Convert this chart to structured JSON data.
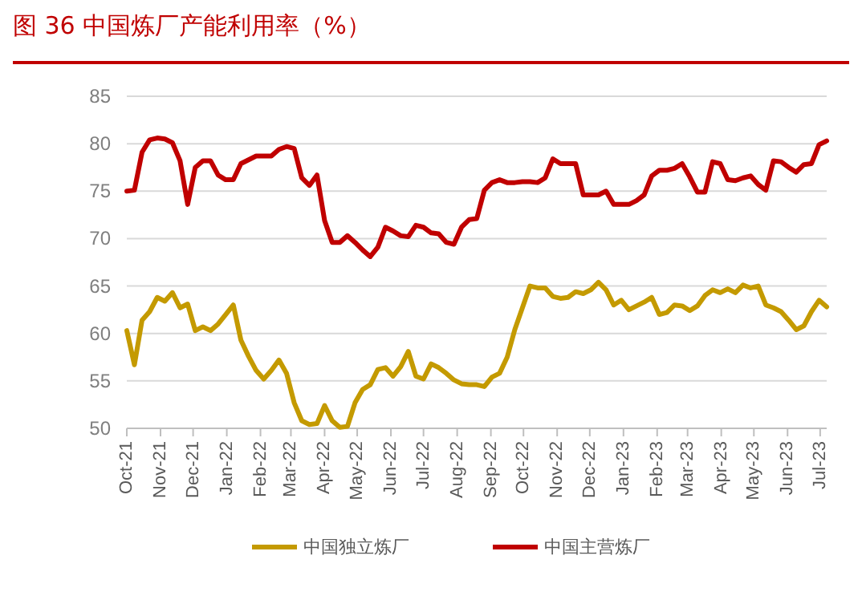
{
  "chart_data": {
    "type": "line",
    "title": "图 36    中国炼厂产能利用率（%）",
    "x": [
      "2021-10-01",
      "2021-10-08",
      "2021-10-15",
      "2021-10-22",
      "2021-10-29",
      "2021-11-05",
      "2021-11-12",
      "2021-11-19",
      "2021-11-26",
      "2021-12-03",
      "2021-12-10",
      "2021-12-17",
      "2021-12-24",
      "2021-12-31",
      "2022-01-07",
      "2022-01-14",
      "2022-01-21",
      "2022-01-28",
      "2022-02-04",
      "2022-02-11",
      "2022-02-18",
      "2022-02-25",
      "2022-03-04",
      "2022-03-11",
      "2022-03-18",
      "2022-03-25",
      "2022-04-01",
      "2022-04-08",
      "2022-04-15",
      "2022-04-22",
      "2022-04-29",
      "2022-05-06",
      "2022-05-13",
      "2022-05-20",
      "2022-05-27",
      "2022-06-03",
      "2022-06-10",
      "2022-06-17",
      "2022-06-24",
      "2022-07-01",
      "2022-07-08",
      "2022-07-15",
      "2022-07-22",
      "2022-07-29",
      "2022-08-05",
      "2022-08-12",
      "2022-08-19",
      "2022-08-26",
      "2022-09-02",
      "2022-09-09",
      "2022-09-16",
      "2022-09-23",
      "2022-09-30",
      "2022-10-07",
      "2022-10-14",
      "2022-10-21",
      "2022-10-28",
      "2022-11-04",
      "2022-11-11",
      "2022-11-18",
      "2022-11-25",
      "2022-12-02",
      "2022-12-09",
      "2022-12-16",
      "2022-12-23",
      "2022-12-30",
      "2023-01-06",
      "2023-01-13",
      "2023-01-20",
      "2023-01-27",
      "2023-02-03",
      "2023-02-10",
      "2023-02-17",
      "2023-02-24",
      "2023-03-03",
      "2023-03-10",
      "2023-03-17",
      "2023-03-24",
      "2023-03-31",
      "2023-04-07",
      "2023-04-14",
      "2023-04-21",
      "2023-04-28",
      "2023-05-05",
      "2023-05-12",
      "2023-05-19",
      "2023-05-26",
      "2023-06-02",
      "2023-06-09",
      "2023-06-16",
      "2023-06-23",
      "2023-06-30",
      "2023-07-07"
    ],
    "series": [
      {
        "name": "中国独立炼厂",
        "color": "#c49a00",
        "values": [
          60.3,
          56.7,
          61.4,
          62.3,
          63.8,
          63.4,
          64.3,
          62.7,
          63.1,
          60.3,
          60.7,
          60.3,
          61.0,
          62.0,
          63.0,
          59.3,
          57.6,
          56.1,
          55.2,
          56.1,
          57.2,
          55.8,
          52.7,
          50.8,
          50.4,
          50.5,
          52.4,
          50.8,
          50.1,
          50.2,
          52.7,
          54.1,
          54.6,
          56.2,
          56.4,
          55.5,
          56.5,
          58.1,
          55.5,
          55.2,
          56.8,
          56.4,
          55.8,
          55.1,
          54.7,
          54.6,
          54.6,
          54.4,
          55.4,
          55.8,
          57.5,
          60.4,
          62.7,
          65.0,
          64.8,
          64.8,
          63.9,
          63.7,
          63.8,
          64.4,
          64.2,
          64.6,
          65.4,
          64.6,
          63.0,
          63.5,
          62.5,
          62.9,
          63.3,
          63.8,
          62.0,
          62.2,
          63.0,
          62.9,
          62.4,
          62.9,
          64.0,
          64.6,
          64.3,
          64.7,
          64.3,
          65.1,
          64.8,
          65.0,
          63.0,
          62.7,
          62.3,
          61.4,
          60.4,
          60.8,
          62.3,
          63.5,
          62.8
        ]
      },
      {
        "name": "中国主营炼厂",
        "color": "#c00000",
        "values": [
          75.0,
          75.1,
          79.1,
          80.4,
          80.6,
          80.5,
          80.1,
          78.2,
          73.6,
          77.5,
          78.2,
          78.2,
          76.7,
          76.2,
          76.2,
          77.9,
          78.3,
          78.7,
          78.7,
          78.7,
          79.4,
          79.7,
          79.5,
          76.4,
          75.6,
          76.7,
          71.9,
          69.6,
          69.6,
          70.3,
          69.6,
          68.8,
          68.1,
          69.1,
          71.2,
          70.8,
          70.3,
          70.2,
          71.4,
          71.2,
          70.6,
          70.5,
          69.6,
          69.4,
          71.2,
          72.0,
          72.1,
          75.1,
          75.9,
          76.2,
          75.9,
          75.9,
          76.0,
          76.0,
          75.9,
          76.4,
          78.4,
          77.9,
          77.9,
          77.9,
          74.6,
          74.6,
          74.6,
          75.0,
          73.6,
          73.6,
          73.6,
          74.0,
          74.6,
          76.6,
          77.2,
          77.2,
          77.4,
          77.9,
          76.5,
          74.9,
          74.9,
          78.1,
          77.9,
          76.2,
          76.1,
          76.4,
          76.6,
          75.7,
          75.1,
          78.2,
          78.1,
          77.5,
          77.0,
          77.8,
          77.9,
          79.9,
          80.3
        ]
      }
    ],
    "xlim": [
      "2021-10-01",
      "2023-07-07"
    ],
    "xticks": [
      {
        "value": "2021-10-01",
        "label": "Oct-21"
      },
      {
        "value": "2021-11-01",
        "label": "Nov-21"
      },
      {
        "value": "2021-12-01",
        "label": "Dec-21"
      },
      {
        "value": "2022-01-01",
        "label": "Jan-22"
      },
      {
        "value": "2022-02-01",
        "label": "Feb-22"
      },
      {
        "value": "2022-03-01",
        "label": "Mar-22"
      },
      {
        "value": "2022-04-01",
        "label": "Apr-22"
      },
      {
        "value": "2022-05-01",
        "label": "May-22"
      },
      {
        "value": "2022-06-01",
        "label": "Jun-22"
      },
      {
        "value": "2022-07-01",
        "label": "Jul-22"
      },
      {
        "value": "2022-08-01",
        "label": "Aug-22"
      },
      {
        "value": "2022-09-01",
        "label": "Sep-22"
      },
      {
        "value": "2022-10-01",
        "label": "Oct-22"
      },
      {
        "value": "2022-11-01",
        "label": "Nov-22"
      },
      {
        "value": "2022-12-01",
        "label": "Dec-22"
      },
      {
        "value": "2023-01-01",
        "label": "Jan-23"
      },
      {
        "value": "2023-02-01",
        "label": "Feb-23"
      },
      {
        "value": "2023-03-01",
        "label": "Mar-23"
      },
      {
        "value": "2023-04-01",
        "label": "Apr-23"
      },
      {
        "value": "2023-05-01",
        "label": "May-23"
      },
      {
        "value": "2023-06-01",
        "label": "Jun-23"
      },
      {
        "value": "2023-07-01",
        "label": "Jul-23"
      }
    ],
    "ylim": [
      50,
      85
    ],
    "yticks": [
      50,
      55,
      60,
      65,
      70,
      75,
      80,
      85
    ],
    "grid": "y",
    "legend": "bottom",
    "marker": "none",
    "line_style": "solid"
  }
}
